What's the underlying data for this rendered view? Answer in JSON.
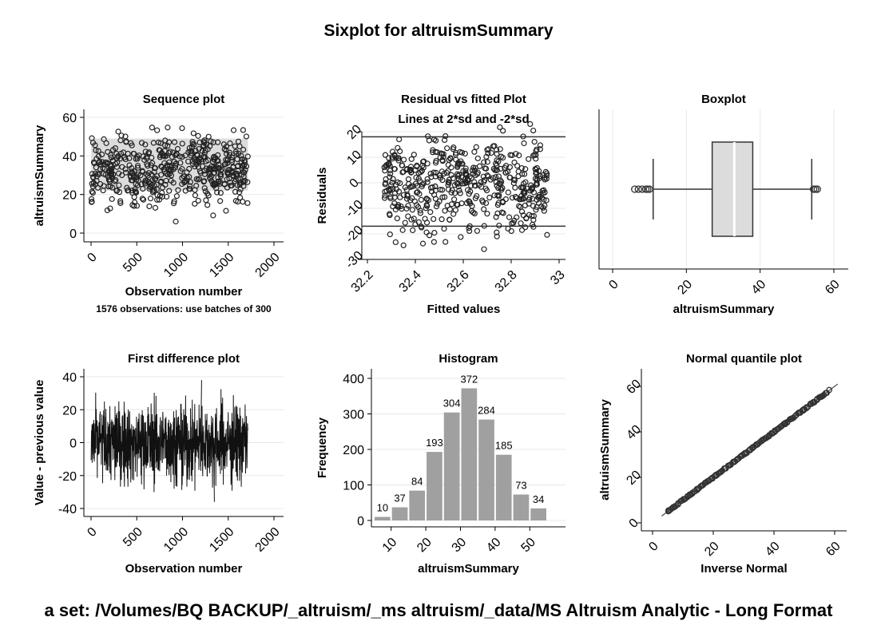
{
  "page": {
    "title": "Sixplot for altruismSummary",
    "footer": "a set: /Volumes/BQ BACKUP/_altruism/_ms altruism/_data/MS Altruism Analytic - Long Format"
  },
  "chart_data": [
    {
      "id": "sequence",
      "type": "scatter",
      "title": "Sequence plot",
      "xlabel": "Observation number",
      "ylabel": "altruismSummary",
      "note": "1576 observations: use batches of 300",
      "xlim": [
        0,
        2000
      ],
      "ylim": [
        0,
        60
      ],
      "xticks": [
        0,
        500,
        1000,
        1500,
        2000
      ],
      "yticks": [
        0,
        20,
        40,
        60
      ],
      "n": 1576,
      "x_range": [
        1,
        1715
      ],
      "mean": 32.5,
      "band": [
        22,
        49
      ]
    },
    {
      "id": "residual",
      "type": "scatter",
      "title": "Residual vs fitted Plot",
      "subtitle": "Lines at 2*sd and -2*sd",
      "xlabel": "Fitted values",
      "ylabel": "Residuals",
      "xlim": [
        32.2,
        33.0
      ],
      "ylim": [
        -30,
        20
      ],
      "xticks": [
        32.2,
        32.4,
        32.6,
        32.8,
        33
      ],
      "yticks": [
        20,
        10,
        0,
        -10,
        -20,
        -30
      ],
      "xtick_labels": [
        "32.2",
        "32.4",
        "32.6",
        "32.8",
        "33"
      ],
      "ytick_labels": [
        "20",
        "10",
        "0",
        "-10",
        "-20",
        "-30"
      ],
      "ref_lines": [
        18,
        -17
      ],
      "x_range": [
        32.27,
        32.95
      ]
    },
    {
      "id": "boxplot",
      "type": "box",
      "title": "Boxplot",
      "xlabel": "altruismSummary",
      "xlim": [
        0,
        60
      ],
      "xticks": [
        0,
        20,
        40,
        60
      ],
      "whisker_low": 11,
      "q1": 27,
      "median": 33,
      "q3": 38,
      "whisker_high": 54,
      "outliers": [
        6,
        7,
        8,
        9,
        9.5,
        10,
        54.5,
        55,
        55.5
      ]
    },
    {
      "id": "difference",
      "type": "line",
      "title": "First difference plot",
      "xlabel": "Observation number",
      "ylabel": "Value - previous value",
      "xlim": [
        0,
        2000
      ],
      "ylim": [
        -40,
        40
      ],
      "xticks": [
        0,
        500,
        1000,
        1500,
        2000
      ],
      "yticks": [
        -40,
        -20,
        0,
        20,
        40
      ],
      "x_range": [
        1,
        1715
      ],
      "y_extent": [
        -36,
        38
      ]
    },
    {
      "id": "histogram",
      "type": "bar",
      "title": "Histogram",
      "xlabel": "altruismSummary",
      "ylabel": "Frequency",
      "xlim": [
        5,
        58
      ],
      "ylim": [
        0,
        400
      ],
      "xticks": [
        10,
        20,
        30,
        40,
        50
      ],
      "yticks": [
        0,
        100,
        200,
        300,
        400
      ],
      "bin_width": 5,
      "bin_centers": [
        7.5,
        12.5,
        17.5,
        22.5,
        27.5,
        32.5,
        37.5,
        42.5,
        47.5,
        52.5
      ],
      "values": [
        10,
        37,
        84,
        193,
        304,
        372,
        284,
        185,
        73,
        34
      ]
    },
    {
      "id": "quantile",
      "type": "scatter",
      "title": "Normal quantile plot",
      "xlabel": "Inverse Normal",
      "ylabel": "altruismSummary",
      "xlim": [
        0,
        60
      ],
      "ylim": [
        0,
        60
      ],
      "xticks": [
        0,
        20,
        40,
        60
      ],
      "yticks": [
        0,
        20,
        40,
        60
      ],
      "data_range": [
        5,
        58
      ],
      "ref_line": [
        [
          3,
          3
        ],
        [
          61,
          61
        ]
      ]
    }
  ]
}
